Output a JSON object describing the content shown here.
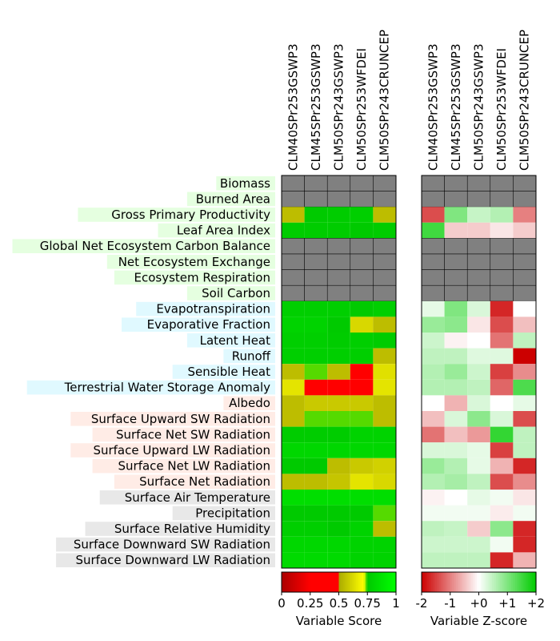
{
  "chart_data": [
    {
      "type": "heatmap",
      "name": "score",
      "models": [
        "CLM40SPr253GSWP3",
        "CLM45SPr253GSWP3",
        "CLM50SPr243GSWP3",
        "CLM50SPr253WFDEI",
        "CLM50SPr243CRUNCEP"
      ],
      "rows": [
        "Biomass",
        "Burned Area",
        "Gross Primary Productivity",
        "Leaf Area Index",
        "Global Net Ecosystem Carbon Balance",
        "Net Ecosystem Exchange",
        "Ecosystem Respiration",
        "Soil Carbon",
        "Evapotranspiration",
        "Evaporative Fraction",
        "Latent Heat",
        "Runoff",
        "Sensible Heat",
        "Terrestrial Water Storage Anomaly",
        "Albedo",
        "Surface Upward SW Radiation",
        "Surface Net SW Radiation",
        "Surface Upward LW Radiation",
        "Surface Net LW Radiation",
        "Surface Net Radiation",
        "Surface Air Temperature",
        "Precipitation",
        "Surface Relative Humidity",
        "Surface Downward SW Radiation",
        "Surface Downward LW Radiation"
      ],
      "values": [
        [
          null,
          null,
          null,
          null,
          null
        ],
        [
          null,
          null,
          null,
          null,
          null
        ],
        [
          0.55,
          0.76,
          0.77,
          0.78,
          0.55
        ],
        [
          0.77,
          0.77,
          0.77,
          0.76,
          0.77
        ],
        [
          null,
          null,
          null,
          null,
          null
        ],
        [
          null,
          null,
          null,
          null,
          null
        ],
        [
          null,
          null,
          null,
          null,
          null
        ],
        [
          null,
          null,
          null,
          null,
          null
        ],
        [
          0.78,
          0.78,
          0.78,
          0.76,
          0.78
        ],
        [
          0.8,
          0.8,
          0.76,
          0.62,
          0.55
        ],
        [
          0.78,
          0.78,
          0.77,
          0.78,
          0.77
        ],
        [
          0.78,
          0.78,
          0.78,
          0.78,
          0.55
        ],
        [
          0.55,
          0.74,
          0.55,
          0.25,
          0.64
        ],
        [
          0.65,
          0.25,
          0.25,
          0.25,
          0.65
        ],
        [
          0.55,
          0.58,
          0.58,
          0.58,
          0.55
        ],
        [
          0.55,
          0.74,
          0.74,
          0.74,
          0.55
        ],
        [
          0.77,
          0.77,
          0.77,
          0.8,
          0.8
        ],
        [
          0.82,
          0.82,
          0.82,
          0.82,
          0.82
        ],
        [
          0.76,
          0.76,
          0.55,
          0.58,
          0.6
        ],
        [
          0.55,
          0.55,
          0.57,
          0.65,
          0.62
        ],
        [
          0.85,
          0.85,
          0.85,
          0.85,
          0.85
        ],
        [
          0.76,
          0.76,
          0.76,
          0.76,
          0.74
        ],
        [
          0.78,
          0.78,
          0.76,
          0.8,
          0.55
        ],
        [
          0.82,
          0.82,
          0.82,
          0.8,
          0.8
        ],
        [
          0.83,
          0.83,
          0.83,
          0.8,
          0.8
        ]
      ],
      "missing_color": "#808080",
      "colorbar": {
        "ticks": [
          "0",
          "0.25",
          "0.5",
          "0.75",
          "1"
        ],
        "label": "Variable Score"
      }
    },
    {
      "type": "heatmap",
      "name": "zscore",
      "models": [
        "CLM40SPr253GSWP3",
        "CLM45SPr253GSWP3",
        "CLM50SPr243GSWP3",
        "CLM50SPr253WFDEI",
        "CLM50SPr243CRUNCEP"
      ],
      "values": [
        [
          null,
          null,
          null,
          null,
          null
        ],
        [
          null,
          null,
          null,
          null,
          null
        ],
        [
          -1.4,
          1.0,
          0.45,
          0.6,
          -1.0
        ],
        [
          1.5,
          -0.4,
          -0.4,
          -0.2,
          -0.4
        ],
        [
          null,
          null,
          null,
          null,
          null
        ],
        [
          null,
          null,
          null,
          null,
          null
        ],
        [
          null,
          null,
          null,
          null,
          null
        ],
        [
          null,
          null,
          null,
          null,
          null
        ],
        [
          0.2,
          1.0,
          0.3,
          -1.7,
          0.0
        ],
        [
          0.8,
          0.9,
          -0.2,
          -1.4,
          -0.5
        ],
        [
          0.4,
          -0.1,
          0.0,
          -1.1,
          0.5
        ],
        [
          0.5,
          0.5,
          0.25,
          0.25,
          -2.0
        ],
        [
          0.6,
          0.8,
          0.4,
          -1.5,
          -0.9
        ],
        [
          0.6,
          0.6,
          0.5,
          -1.2,
          1.4
        ],
        [
          0.0,
          -0.6,
          0.3,
          0.0,
          0.2
        ],
        [
          -0.5,
          0.3,
          0.9,
          0.3,
          -1.4
        ],
        [
          -1.1,
          -0.5,
          -0.8,
          1.6,
          0.5
        ],
        [
          0.3,
          0.3,
          0.2,
          -1.5,
          0.5
        ],
        [
          0.8,
          0.6,
          0.2,
          -0.6,
          -1.7
        ],
        [
          0.6,
          0.7,
          0.5,
          -1.4,
          -0.9
        ],
        [
          -0.1,
          0.0,
          0.2,
          0.1,
          -0.2
        ],
        [
          0.1,
          0.1,
          0.1,
          -0.15,
          0.1
        ],
        [
          0.5,
          0.45,
          -0.4,
          0.9,
          -1.7
        ],
        [
          0.4,
          0.4,
          0.4,
          0.1,
          -1.7
        ],
        [
          0.5,
          0.5,
          0.5,
          -1.7,
          -0.6
        ]
      ],
      "missing_color": "#808080",
      "colorbar": {
        "ticks": [
          "-2",
          "-1",
          "+0",
          "+1",
          "+2"
        ],
        "label": "Variable Z-score"
      }
    }
  ],
  "row_group_colors": [
    "#e5ffe0",
    "#e5ffe0",
    "#e5ffe0",
    "#e5ffe0",
    "#e5ffe0",
    "#e5ffe0",
    "#e5ffe0",
    "#e5ffe0",
    "#e0f9ff",
    "#e0f9ff",
    "#e0f9ff",
    "#e0f9ff",
    "#e0f9ff",
    "#e0f9ff",
    "#ffece6",
    "#ffece6",
    "#ffece6",
    "#ffece6",
    "#ffece6",
    "#ffece6",
    "#e8e8e8",
    "#e8e8e8",
    "#e8e8e8",
    "#e8e8e8",
    "#e8e8e8"
  ]
}
